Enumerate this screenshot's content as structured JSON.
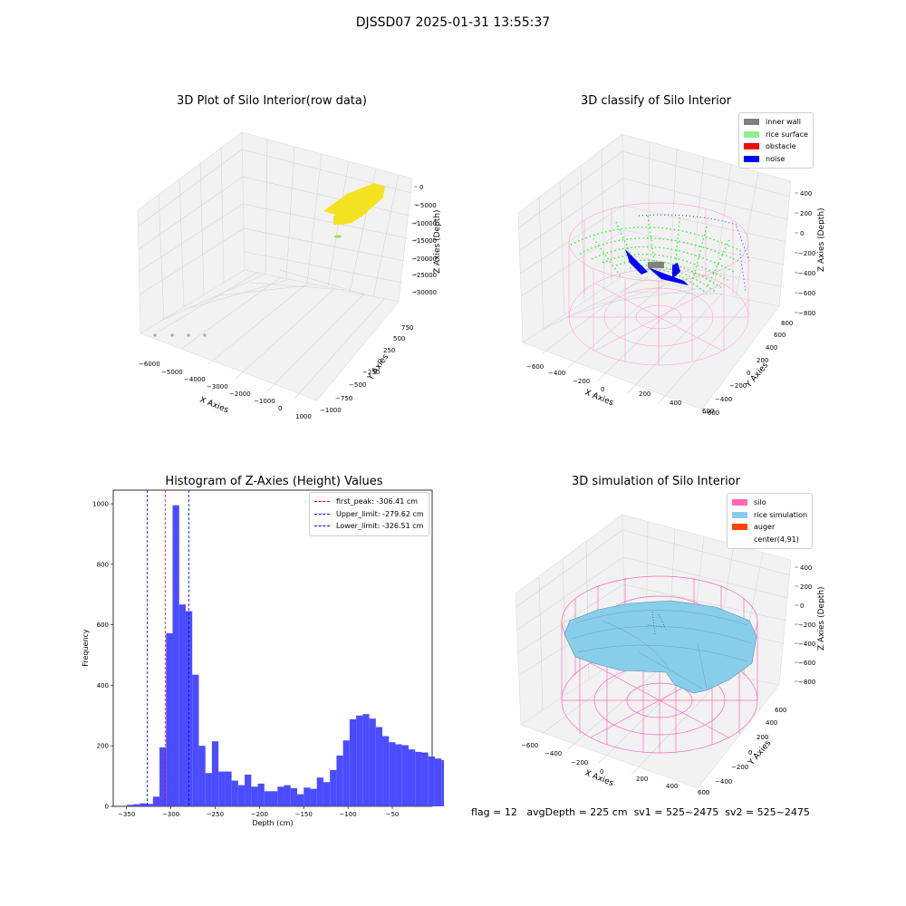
{
  "figure_title": "DJSSD07 2025-01-31 13:55:37",
  "colors": {
    "inner_wall": "#808080",
    "rice_surface": "#90ee90",
    "obstacle": "#ff0000",
    "noise": "#0000ff",
    "silo": "#ff69b4",
    "rice_simulation": "#87ceeb",
    "auger": "#ff4500",
    "hist_bar": "#4c4cff",
    "raw_points": "#f4e222"
  },
  "panels": {
    "raw": {
      "title": "3D Plot of Silo Interior(row data)",
      "xlabel": "X Axies",
      "ylabel": "Y Axies",
      "zlabel": "Z Axies (Depth)",
      "xticks": [
        "−6000",
        "−5000",
        "−4000",
        "−3000",
        "−2000",
        "−1000",
        "0",
        "1000"
      ],
      "yticks": [
        "−1000",
        "−750",
        "−500",
        "−250",
        "0",
        "250",
        "500",
        "750"
      ],
      "zticks": [
        "0",
        "−5000",
        "−10000",
        "−15000",
        "−20000",
        "−25000",
        "−30000"
      ]
    },
    "classify": {
      "title": "3D classify of Silo Interior",
      "xlabel": "X Axies",
      "ylabel": "Y Axies",
      "zlabel": "Z Axies (Depth)",
      "xticks": [
        "−600",
        "−400",
        "−200",
        "0",
        "200",
        "400",
        "600"
      ],
      "yticks": [
        "−600",
        "−400",
        "−200",
        "0",
        "200",
        "400",
        "600",
        "800"
      ],
      "zticks": [
        "400",
        "200",
        "0",
        "−200",
        "−400",
        "−600",
        "−800"
      ],
      "legend": [
        "inner wall",
        "rice surface",
        "obstacle",
        "noise"
      ]
    },
    "simulation": {
      "title": "3D simulation of Silo Interior",
      "xlabel": "X Axies",
      "ylabel": "Y Axies",
      "zlabel": "Z Axies (Depth)",
      "xticks": [
        "−600",
        "−400",
        "−200",
        "0",
        "200",
        "400",
        "600"
      ],
      "yticks": [
        "−400",
        "−200",
        "0",
        "200",
        "400",
        "600"
      ],
      "zticks": [
        "400",
        "200",
        "0",
        "−200",
        "−400",
        "−600",
        "−800"
      ],
      "legend": [
        "silo",
        "rice simulation",
        "auger",
        "center(4,91)"
      ]
    }
  },
  "chart_data": {
    "type": "bar",
    "title": "Histogram of Z-Axies (Height) Values",
    "xlabel": "Depth (cm)",
    "ylabel": "Frequency",
    "xlim": [
      -365,
      -5
    ],
    "ylim": [
      0,
      1045
    ],
    "xticks": [
      -350,
      -300,
      -250,
      -200,
      -150,
      -100,
      -50
    ],
    "yticks": [
      0,
      200,
      400,
      600,
      800,
      1000
    ],
    "bin_width": 7.4,
    "bin_start": -349.8,
    "values": [
      5,
      7,
      10,
      8,
      32,
      195,
      572,
      995,
      667,
      645,
      435,
      200,
      110,
      215,
      115,
      115,
      85,
      70,
      105,
      65,
      75,
      50,
      50,
      65,
      70,
      60,
      40,
      62,
      58,
      95,
      80,
      120,
      168,
      218,
      288,
      300,
      305,
      290,
      262,
      232,
      212,
      205,
      202,
      188,
      180,
      178,
      165,
      158,
      153,
      90
    ],
    "lines": [
      {
        "label": "first_peak: -306.41 cm",
        "x": -306.41,
        "color": "#ff0000"
      },
      {
        "label": "Upper_limit: -279.62 cm",
        "x": -279.62,
        "color": "#0000ff"
      },
      {
        "label": "Lower_limit: -326.51 cm",
        "x": -326.51,
        "color": "#0000ff"
      }
    ],
    "legend_loc": "upper right"
  },
  "status": {
    "flag": "flag = 12",
    "avg_depth": "avgDepth = 225 cm",
    "sv1": "sv1 = 525~2475",
    "sv2": "sv2 = 525~2475"
  }
}
